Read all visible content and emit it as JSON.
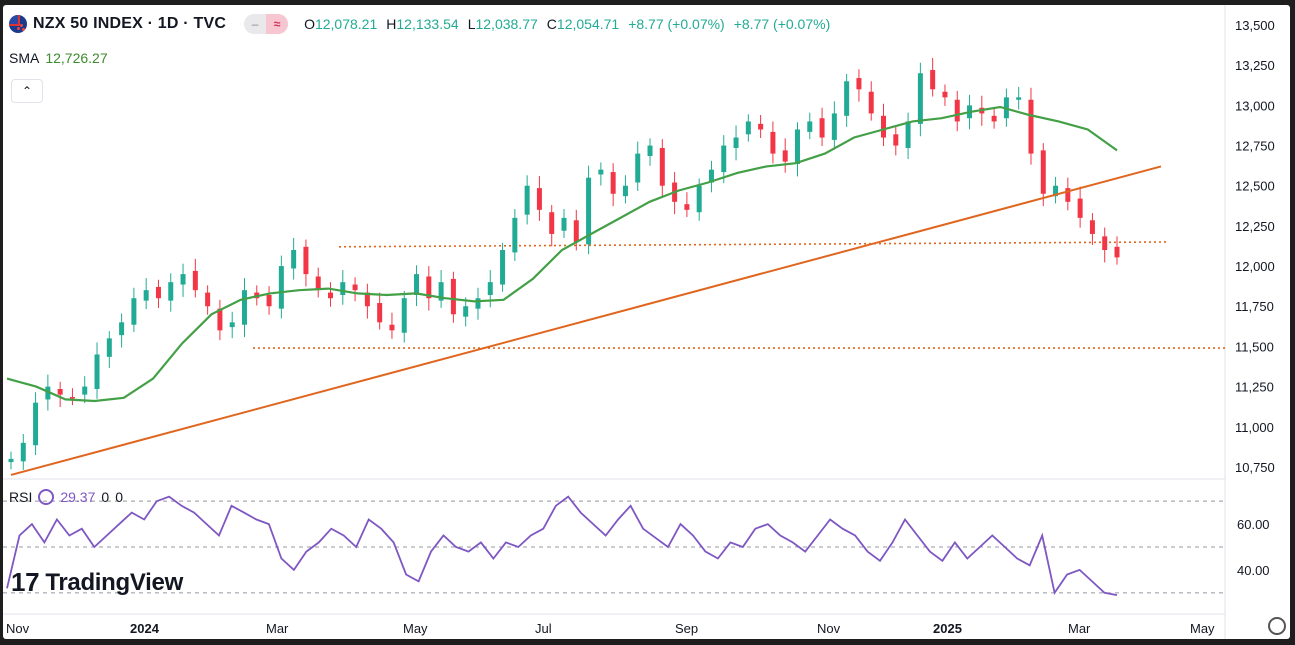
{
  "header": {
    "title": "NZX 50 INDEX · 1D · TVC",
    "open_label": "O",
    "open": "12,078.21",
    "high_label": "H",
    "high": "12,133.54",
    "low_label": "L",
    "low": "12,038.77",
    "close_label": "C",
    "close": "12,054.71",
    "change": "+8.77 (+0.07%)",
    "change2": "+8.77 (+0.07%)",
    "pill_left": "–",
    "pill_right": "≈"
  },
  "sma": {
    "label": "SMA",
    "value": "12,726.27"
  },
  "collapse_icon": "chevron-up-icon",
  "rsi": {
    "label": "RSI",
    "value": "29.37",
    "extra1": "0",
    "extra2": "0"
  },
  "brand": {
    "mark": "17",
    "name": "TradingView"
  },
  "colors": {
    "up": "#22ab94",
    "down": "#f23645",
    "sma": "#43a047",
    "trend": "#e0661f",
    "rsi": "#7e57c2"
  },
  "chart_data": [
    {
      "type": "candlestick",
      "ylim": [
        10650,
        13550
      ],
      "yticks": [
        "13,500",
        "13,250",
        "13,000",
        "12,750",
        "12,500",
        "12,250",
        "12,000",
        "11,750",
        "11,500",
        "11,250",
        "11,000",
        "10,750"
      ],
      "ytick_values": [
        13500,
        13250,
        13000,
        12750,
        12500,
        12250,
        12000,
        11750,
        11500,
        11250,
        11000,
        10750
      ],
      "xticks": [
        "Nov",
        "2024",
        "Mar",
        "May",
        "Jul",
        "Sep",
        "Nov",
        "2025",
        "Mar",
        "May"
      ],
      "close_series_approx": [
        10800,
        10900,
        11150,
        11250,
        11200,
        11180,
        11250,
        11450,
        11550,
        11650,
        11800,
        11850,
        11800,
        11900,
        11950,
        11850,
        11750,
        11600,
        11650,
        11850,
        11800,
        11750,
        12000,
        12100,
        11950,
        11850,
        11800,
        11900,
        11850,
        11750,
        11650,
        11600,
        11800,
        11950,
        11800,
        11900,
        11700,
        11750,
        11800,
        11900,
        12100,
        12300,
        12500,
        12350,
        12200,
        12300,
        12150,
        12550,
        12600,
        12450,
        12500,
        12700,
        12750,
        12500,
        12400,
        12350,
        12500,
        12600,
        12750,
        12800,
        12900,
        12850,
        12700,
        12650,
        12850,
        12900,
        12800,
        12950,
        13150,
        13100,
        12950,
        12800,
        12750,
        12900,
        13200,
        13100,
        13050,
        12900,
        13000,
        12950,
        12900,
        13050,
        13050,
        12700,
        12450,
        12500,
        12400,
        12300,
        12200,
        12100,
        12054
      ],
      "sma_values": [
        11300,
        11250,
        11170,
        11160,
        11180,
        11300,
        11520,
        11700,
        11790,
        11830,
        11850,
        11860,
        11830,
        11820,
        11830,
        11800,
        11780,
        11790,
        11920,
        12100,
        12200,
        12300,
        12400,
        12470,
        12520,
        12580,
        12620,
        12640,
        12700,
        12800,
        12850,
        12900,
        12920,
        12960,
        12990,
        12940,
        12900,
        12850,
        12720
      ],
      "trendline": {
        "from": [
          10700,
          "Oct 2023"
        ],
        "to": [
          12620,
          "Apr 2025"
        ]
      },
      "levels": [
        12150,
        11490
      ]
    },
    {
      "type": "line",
      "name": "RSI",
      "yticks": [
        "60.00",
        "40.00"
      ],
      "ytick_values": [
        60,
        40
      ],
      "bands": [
        70,
        50,
        30
      ],
      "values": [
        32,
        55,
        60,
        52,
        62,
        55,
        58,
        50,
        55,
        60,
        65,
        62,
        70,
        72,
        68,
        65,
        60,
        55,
        68,
        65,
        62,
        60,
        45,
        40,
        48,
        52,
        58,
        55,
        50,
        62,
        58,
        52,
        38,
        35,
        48,
        55,
        50,
        48,
        52,
        45,
        52,
        50,
        55,
        58,
        68,
        72,
        65,
        60,
        55,
        62,
        68,
        58,
        54,
        50,
        60,
        55,
        48,
        45,
        52,
        50,
        58,
        60,
        55,
        52,
        48,
        55,
        62,
        58,
        55,
        48,
        44,
        52,
        62,
        55,
        48,
        44,
        52,
        45,
        50,
        55,
        50,
        45,
        42,
        55,
        30,
        38,
        40,
        35,
        30,
        29
      ]
    }
  ]
}
